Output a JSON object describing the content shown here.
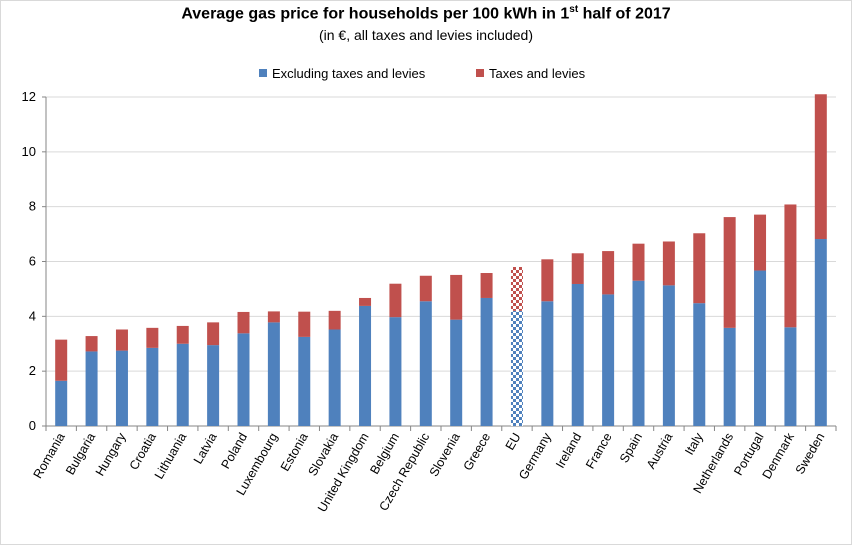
{
  "chart_data": {
    "type": "bar",
    "stacked": true,
    "title": {
      "prefix": "Average gas price for households per 100 kWh in 1",
      "superscript": "st",
      "suffix": " half of 2017"
    },
    "subtitle": "(in €, all taxes and levies included)",
    "xlabel": "",
    "ylabel": "",
    "ylim": [
      0,
      12
    ],
    "yticks": [
      "0",
      "2",
      "4",
      "6",
      "8",
      "10",
      "12"
    ],
    "grid": true,
    "legend_position": "top-center",
    "categories": [
      "Romania",
      "Bulgaria",
      "Hungary",
      "Croatia",
      "Lithuania",
      "Latvia",
      "Poland",
      "Luxembourg",
      "Estonia",
      "Slovakia",
      "United Kingdom",
      "Belgium",
      "Czech Republic",
      "Slovenia",
      "Greece",
      "EU",
      "Germany",
      "Ireland",
      "France",
      "Spain",
      "Austria",
      "Italy",
      "Netherlands",
      "Portugal",
      "Denmark",
      "Sweden"
    ],
    "highlight_category": "EU",
    "series": [
      {
        "name": "Excluding taxes and levies",
        "color": "#4f81bd",
        "values": [
          1.65,
          2.72,
          2.75,
          2.85,
          3.0,
          2.95,
          3.38,
          3.78,
          3.25,
          3.52,
          4.38,
          3.97,
          4.55,
          3.88,
          4.67,
          4.2,
          4.55,
          5.18,
          4.8,
          5.3,
          5.13,
          4.48,
          3.58,
          5.67,
          3.6,
          6.82
        ]
      },
      {
        "name": "Taxes and levies",
        "color": "#c0504d",
        "values": [
          1.5,
          0.56,
          0.77,
          0.73,
          0.65,
          0.83,
          0.78,
          0.4,
          0.92,
          0.68,
          0.29,
          1.22,
          0.93,
          1.63,
          0.91,
          1.6,
          1.53,
          1.12,
          1.58,
          1.35,
          1.6,
          2.55,
          4.04,
          2.04,
          4.48,
          5.28
        ]
      }
    ]
  }
}
